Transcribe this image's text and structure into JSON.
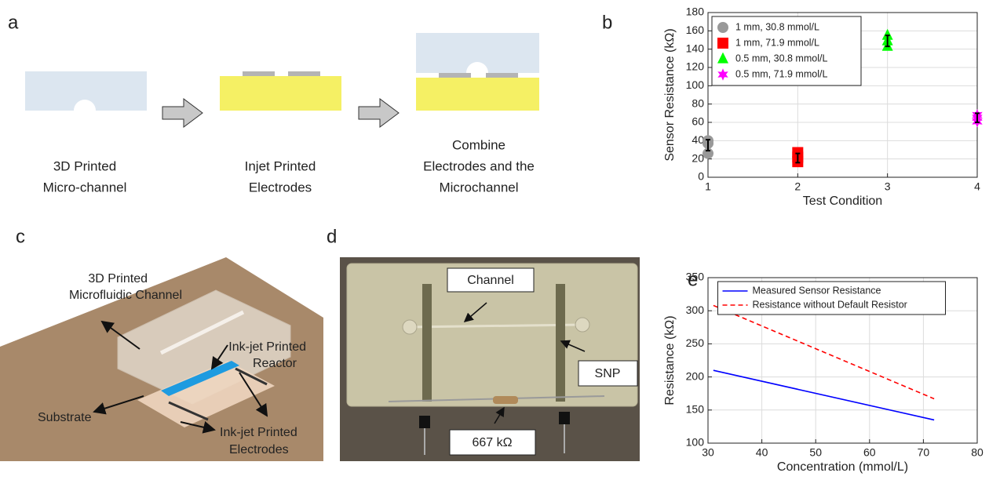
{
  "panel_a": {
    "label": "a",
    "steps": [
      [
        "3D Printed",
        "Micro-channel"
      ],
      [
        "Injet Printed",
        "Electrodes"
      ],
      [
        "Combine",
        "Electrodes and the",
        "Microchannel"
      ]
    ]
  },
  "panel_b": {
    "label": "b"
  },
  "panel_c": {
    "label": "c",
    "callouts": [
      [
        "3D Printed",
        "Microfluidic Channel"
      ],
      [
        "Ink-jet Printed",
        "Reactor"
      ],
      [
        "Substrate"
      ],
      [
        "Ink-jet Printed",
        "Electrodes"
      ]
    ]
  },
  "panel_d": {
    "label": "d",
    "callouts": [
      "Channel",
      "SNP",
      "667 kΩ"
    ]
  },
  "panel_e": {
    "label": "e"
  },
  "chart_data": [
    {
      "type": "scatter",
      "xlabel": "Test Condition",
      "ylabel": "Sensor Resistance (kΩ)",
      "xlim": [
        1,
        4
      ],
      "xticks": [
        1,
        2,
        3,
        4
      ],
      "ylim": [
        0,
        180
      ],
      "yticks": [
        0,
        20,
        40,
        60,
        80,
        100,
        120,
        140,
        160,
        180
      ],
      "grid": true,
      "legend": "upper left",
      "series": [
        {
          "name": "1 mm, 30.8 mmol/L",
          "color": "#999999",
          "marker": "circle",
          "x": [
            1,
            1,
            1
          ],
          "values": [
            26,
            37,
            40
          ],
          "mean": 35,
          "error": 6
        },
        {
          "name": "1 mm, 71.9 mmol/L",
          "color": "#ff0000",
          "marker": "square",
          "x": [
            2,
            2,
            2
          ],
          "values": [
            17,
            22,
            27
          ],
          "mean": 21,
          "error": 5
        },
        {
          "name": "0.5 mm, 30.8 mmol/L",
          "color": "#00ff00",
          "marker": "triangle",
          "x": [
            3,
            3,
            3
          ],
          "values": [
            143,
            149,
            155
          ],
          "mean": 149,
          "error": 6
        },
        {
          "name": "0.5 mm, 71.9 mmol/L",
          "color": "#ff00ff",
          "marker": "star",
          "x": [
            4,
            4,
            4
          ],
          "values": [
            61,
            65,
            68
          ],
          "mean": 65,
          "error": 5
        }
      ]
    },
    {
      "type": "line",
      "xlabel": "Concentration (mmol/L)",
      "ylabel": "Resistance (kΩ)",
      "xlim": [
        30,
        80
      ],
      "xticks": [
        30,
        40,
        50,
        60,
        70,
        80
      ],
      "ylim": [
        100,
        350
      ],
      "yticks": [
        100,
        150,
        200,
        250,
        300,
        350
      ],
      "grid": true,
      "legend": "upper center",
      "series": [
        {
          "name": "Measured Sensor Resistance",
          "color": "#0000ff",
          "dash": false,
          "x": [
            31,
            72
          ],
          "values": [
            210,
            135
          ]
        },
        {
          "name": "Resistance without Default Resistor",
          "color": "#ff0000",
          "dash": true,
          "x": [
            31,
            72
          ],
          "values": [
            308,
            167
          ]
        }
      ]
    }
  ]
}
